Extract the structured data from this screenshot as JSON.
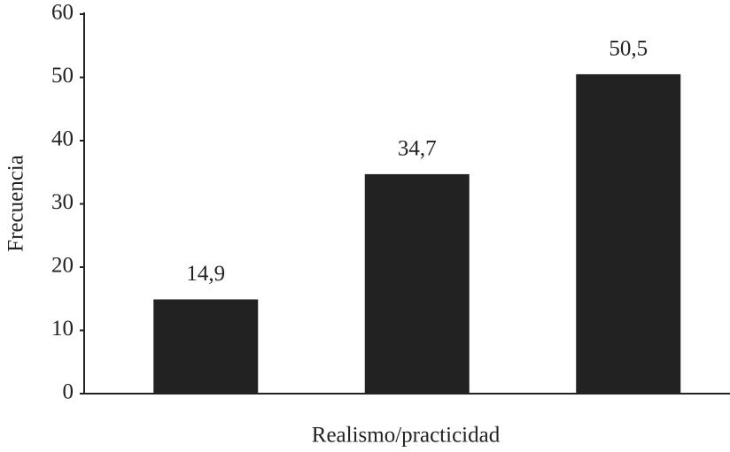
{
  "chart_data": {
    "type": "bar",
    "x_label": "Realismo/practicidad",
    "y_label": "Frecuencia",
    "categories": [
      null,
      null,
      null
    ],
    "values": [
      14.9,
      34.7,
      50.5
    ],
    "value_labels": [
      "14,9",
      "34,7",
      "50,5"
    ],
    "color": "#222222",
    "ylim": [
      0,
      60
    ],
    "yticks": [
      0,
      10,
      20,
      30,
      40,
      50,
      60
    ],
    "grid": false
  }
}
